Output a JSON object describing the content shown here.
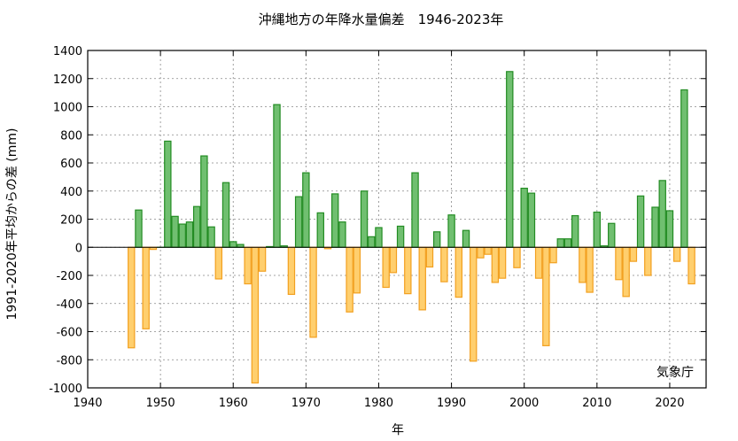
{
  "chart_data": {
    "type": "bar",
    "title": "沖縄地方の年降水量偏差　1946-2023年",
    "xlabel": "年",
    "ylabel": "1991-2020年平均からの差 (mm)",
    "credit": "気象庁",
    "xlim": [
      1940,
      2025
    ],
    "ylim": [
      -1000,
      1400
    ],
    "xticks": [
      1940,
      1950,
      1960,
      1970,
      1980,
      1990,
      2000,
      2010,
      2020
    ],
    "yticks": [
      -1000,
      -800,
      -600,
      -400,
      -200,
      0,
      200,
      400,
      600,
      800,
      1000,
      1200,
      1400
    ],
    "grid": true,
    "colors": {
      "positive_fill": "#70bf70",
      "positive_stroke": "#238c23",
      "negative_fill": "#ffcf6e",
      "negative_stroke": "#f2a020"
    },
    "x": [
      1946,
      1947,
      1948,
      1949,
      1950,
      1951,
      1952,
      1953,
      1954,
      1955,
      1956,
      1957,
      1958,
      1959,
      1960,
      1961,
      1962,
      1963,
      1964,
      1965,
      1966,
      1967,
      1968,
      1969,
      1970,
      1971,
      1972,
      1973,
      1974,
      1975,
      1976,
      1977,
      1978,
      1979,
      1980,
      1981,
      1982,
      1983,
      1984,
      1985,
      1986,
      1987,
      1988,
      1989,
      1990,
      1991,
      1992,
      1993,
      1994,
      1995,
      1996,
      1997,
      1998,
      1999,
      2000,
      2001,
      2002,
      2003,
      2004,
      2005,
      2006,
      2007,
      2008,
      2009,
      2010,
      2011,
      2012,
      2013,
      2014,
      2015,
      2016,
      2017,
      2018,
      2019,
      2020,
      2021,
      2022,
      2023
    ],
    "values": [
      -715,
      265,
      -580,
      -15,
      0,
      755,
      220,
      165,
      180,
      290,
      650,
      145,
      -225,
      460,
      40,
      20,
      -260,
      -965,
      -170,
      5,
      1015,
      10,
      -335,
      360,
      530,
      -640,
      245,
      -10,
      380,
      180,
      -460,
      -325,
      400,
      75,
      140,
      -285,
      -180,
      150,
      -330,
      530,
      -445,
      -140,
      110,
      -245,
      230,
      -355,
      120,
      -810,
      -75,
      -50,
      -250,
      -220,
      1250,
      -145,
      420,
      385,
      -220,
      -700,
      -110,
      60,
      60,
      225,
      -250,
      -320,
      250,
      10,
      170,
      -230,
      -350,
      -100,
      365,
      -200,
      285,
      475,
      260,
      -100,
      1120,
      -260
    ]
  }
}
